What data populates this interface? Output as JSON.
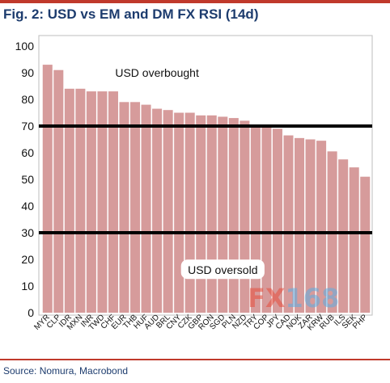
{
  "figure": {
    "title": "Fig. 2: USD vs EM and DM FX RSI (14d)",
    "source": "Source: Nomura, Macrobond",
    "watermark": {
      "part1": "FX",
      "part2": "168"
    }
  },
  "colors": {
    "bar": "#d69b9b",
    "rule": "#c0392b",
    "title": "#1d3c6e",
    "threshold": "#000000",
    "watermark_red": "#e74c3c",
    "watermark_blue": "#5dade2"
  },
  "chart_data": {
    "type": "bar",
    "categories": [
      "MYR",
      "CLP",
      "IDR",
      "MXN",
      "INR",
      "TWD",
      "CHF",
      "EUR",
      "THB",
      "HUF",
      "AUD",
      "BRL",
      "CNY",
      "CZK",
      "GBP",
      "RON",
      "SGD",
      "PLN",
      "NZD",
      "TRY",
      "COP",
      "JPY",
      "CAD",
      "NOK",
      "ZAR",
      "KRW",
      "RUB",
      "ILS",
      "SEK",
      "PHP"
    ],
    "series": [
      {
        "values": [
          93,
          91,
          84,
          84,
          83,
          83,
          83,
          79,
          79,
          78,
          76.5,
          76,
          75,
          75,
          74,
          74,
          73.5,
          73,
          72,
          69.5,
          69.5,
          69,
          66.5,
          65.5,
          65,
          64.5,
          60.5,
          57.5,
          54.5,
          51
        ]
      }
    ],
    "ylim": [
      0,
      100
    ],
    "yticks": [
      0,
      10,
      20,
      30,
      40,
      50,
      60,
      70,
      80,
      90,
      100
    ],
    "xlabel": "",
    "ylabel": "",
    "grid": false,
    "reference_lines": [
      70,
      30
    ],
    "annotations": [
      {
        "text": "USD overbought",
        "y": 90,
        "anchor_category": "AUD"
      },
      {
        "text": "USD oversold",
        "y": 16,
        "anchor_category": "SGD",
        "boxed": true
      }
    ]
  }
}
